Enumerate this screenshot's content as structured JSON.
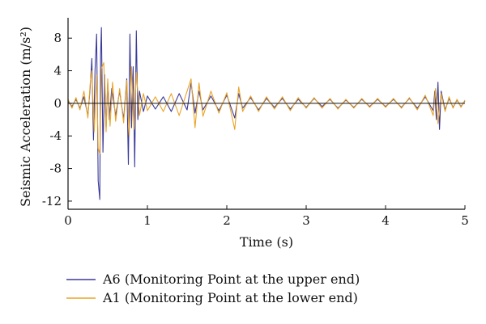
{
  "chart_data": {
    "type": "line",
    "xlabel": "Time (s)",
    "ylabel": "Seismic Acceleration (m/s²)",
    "xlim": [
      0,
      5
    ],
    "ylim": [
      -13,
      10.5
    ],
    "xticks": [
      0,
      1,
      2,
      3,
      4,
      5
    ],
    "yticks": [
      8,
      4,
      0,
      -4,
      -8,
      -12
    ],
    "grid": false,
    "legend_position": "bottom-left",
    "series": [
      {
        "name": "A6 (Monitoring Point at the upper end)",
        "color": "#3a3a9a",
        "x": [
          0,
          0.05,
          0.1,
          0.15,
          0.2,
          0.25,
          0.28,
          0.3,
          0.32,
          0.34,
          0.36,
          0.38,
          0.4,
          0.41,
          0.42,
          0.44,
          0.46,
          0.48,
          0.5,
          0.52,
          0.55,
          0.6,
          0.65,
          0.7,
          0.74,
          0.76,
          0.78,
          0.8,
          0.82,
          0.84,
          0.86,
          0.88,
          0.9,
          0.95,
          1.0,
          1.1,
          1.2,
          1.3,
          1.4,
          1.5,
          1.55,
          1.6,
          1.65,
          1.7,
          1.8,
          1.9,
          2.0,
          2.1,
          2.15,
          2.2,
          2.3,
          2.4,
          2.5,
          2.6,
          2.7,
          2.8,
          2.9,
          3.0,
          3.1,
          3.2,
          3.3,
          3.4,
          3.5,
          3.6,
          3.7,
          3.8,
          3.9,
          4.0,
          4.1,
          4.2,
          4.3,
          4.4,
          4.5,
          4.6,
          4.62,
          4.64,
          4.66,
          4.68,
          4.7,
          4.75,
          4.8,
          4.85,
          4.9,
          4.95,
          5.0
        ],
        "values": [
          0.3,
          -0.4,
          0.5,
          -0.6,
          0.8,
          -1.5,
          2.0,
          5.5,
          -4.5,
          4.0,
          8.5,
          -9.5,
          -11.8,
          6.0,
          9.3,
          -6.0,
          3.5,
          -3.0,
          2.5,
          -2.0,
          1.8,
          -1.5,
          1.5,
          -2.0,
          3.0,
          -7.5,
          8.5,
          -3.0,
          4.5,
          -7.8,
          8.9,
          -2.0,
          1.5,
          -1.0,
          0.9,
          -0.7,
          0.8,
          -1.0,
          1.2,
          -0.8,
          2.5,
          -1.2,
          1.5,
          -0.8,
          0.9,
          -0.9,
          1.0,
          -1.8,
          1.2,
          -0.6,
          0.7,
          -0.8,
          0.6,
          -0.5,
          0.6,
          -0.7,
          0.5,
          -0.5,
          0.6,
          -0.4,
          0.5,
          -0.6,
          0.4,
          -0.5,
          0.5,
          -0.4,
          0.5,
          -0.4,
          0.5,
          -0.5,
          0.6,
          -0.6,
          0.8,
          -0.9,
          1.5,
          -2.0,
          2.6,
          -3.2,
          1.5,
          -0.8,
          0.6,
          -0.5,
          0.4,
          -0.4,
          0.3
        ]
      },
      {
        "name": "A1 (Monitoring Point at the lower end)",
        "color": "#e9a427",
        "x": [
          0,
          0.05,
          0.1,
          0.15,
          0.2,
          0.25,
          0.28,
          0.3,
          0.33,
          0.36,
          0.38,
          0.4,
          0.42,
          0.45,
          0.48,
          0.5,
          0.53,
          0.56,
          0.6,
          0.65,
          0.7,
          0.74,
          0.77,
          0.8,
          0.83,
          0.86,
          0.9,
          0.95,
          1.0,
          1.1,
          1.2,
          1.3,
          1.4,
          1.5,
          1.55,
          1.6,
          1.65,
          1.7,
          1.8,
          1.9,
          2.0,
          2.1,
          2.15,
          2.2,
          2.3,
          2.4,
          2.5,
          2.6,
          2.7,
          2.8,
          2.9,
          3.0,
          3.1,
          3.2,
          3.3,
          3.4,
          3.5,
          3.6,
          3.7,
          3.8,
          3.9,
          4.0,
          4.1,
          4.2,
          4.3,
          4.4,
          4.5,
          4.6,
          4.63,
          4.66,
          4.7,
          4.75,
          4.8,
          4.85,
          4.9,
          4.95,
          5.0
        ],
        "values": [
          0.5,
          -0.6,
          0.7,
          -0.8,
          1.5,
          -1.8,
          2.5,
          4.0,
          -3.5,
          3.5,
          -5.5,
          -6.2,
          4.2,
          5.0,
          -3.5,
          3.0,
          -2.8,
          2.6,
          -2.2,
          1.8,
          -2.4,
          2.8,
          -4.0,
          4.5,
          -3.2,
          3.8,
          -1.5,
          1.2,
          -0.9,
          0.8,
          -1.0,
          1.2,
          -1.5,
          1.5,
          3.0,
          -3.0,
          2.5,
          -1.6,
          1.5,
          -1.2,
          1.3,
          -3.2,
          2.0,
          -1.0,
          0.9,
          -1.0,
          0.8,
          -0.7,
          0.8,
          -0.9,
          0.7,
          -0.6,
          0.7,
          -0.6,
          0.6,
          -0.7,
          0.5,
          -0.6,
          0.6,
          -0.5,
          0.6,
          -0.5,
          0.6,
          -0.6,
          0.7,
          -0.8,
          1.0,
          -1.5,
          1.8,
          -2.5,
          1.2,
          -1.0,
          0.8,
          -0.6,
          0.5,
          -0.5,
          0.4
        ]
      }
    ]
  }
}
